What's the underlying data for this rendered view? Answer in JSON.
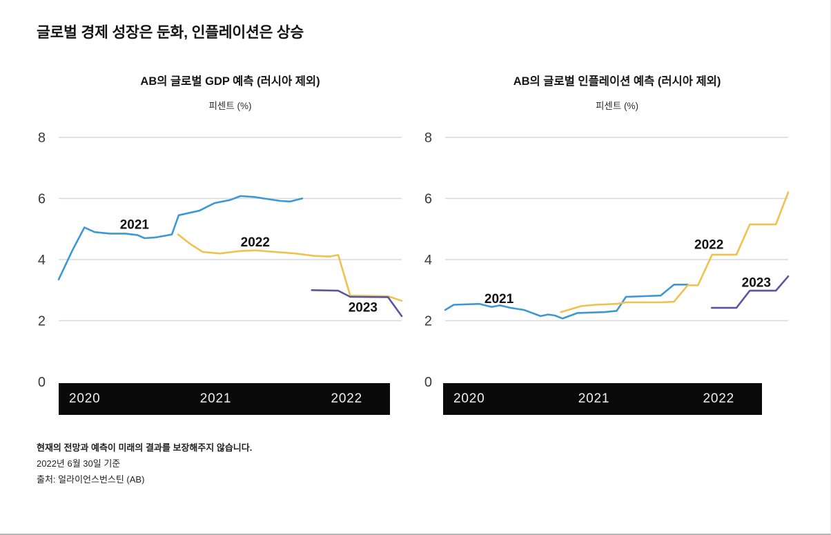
{
  "page_title": "글로벌 경제 성장은 둔화, 인플레이션은 상승",
  "colors": {
    "grid": "#d9d9d9",
    "tick_text": "#3a3a3a",
    "axis_bar_bg": "#0a0a0a",
    "axis_bar_text": "#efefef",
    "series_label_text": "#111111",
    "line_2021": "#3b98d5",
    "line_2022": "#efc24d",
    "line_2023": "#5b53a4"
  },
  "chart_data": [
    {
      "type": "line",
      "title": "AB의 글로벌 GDP 예측 (러시아 제외)",
      "unit_label": "피센트 (%)",
      "ylim": [
        0,
        8
      ],
      "yticks": [
        8,
        6,
        4,
        2,
        0
      ],
      "grid": "horizontal gridlines at 2,4,6,8; baseline is solid black bar",
      "legend": "inline bold year labels next to lines",
      "x_axis_years": [
        "2020",
        "2021",
        "2022"
      ],
      "series": [
        {
          "name": "2021",
          "color": "#3b98d5",
          "label": {
            "x": 0.221,
            "v": 5.15
          },
          "points": [
            [
              0.0,
              3.35
            ],
            [
              0.04,
              4.3
            ],
            [
              0.075,
              5.05
            ],
            [
              0.105,
              4.9
            ],
            [
              0.15,
              4.85
            ],
            [
              0.195,
              4.85
            ],
            [
              0.23,
              4.8
            ],
            [
              0.25,
              4.7
            ],
            [
              0.28,
              4.72
            ],
            [
              0.31,
              4.78
            ],
            [
              0.33,
              4.82
            ],
            [
              0.35,
              5.45
            ],
            [
              0.41,
              5.6
            ],
            [
              0.455,
              5.85
            ],
            [
              0.5,
              5.95
            ],
            [
              0.53,
              6.08
            ],
            [
              0.57,
              6.05
            ],
            [
              0.61,
              5.98
            ],
            [
              0.645,
              5.92
            ],
            [
              0.675,
              5.9
            ],
            [
              0.71,
              6.0
            ]
          ]
        },
        {
          "name": "2022",
          "color": "#efc24d",
          "label": {
            "x": 0.573,
            "v": 4.58
          },
          "points": [
            [
              0.348,
              4.82
            ],
            [
              0.385,
              4.5
            ],
            [
              0.42,
              4.25
            ],
            [
              0.47,
              4.2
            ],
            [
              0.53,
              4.28
            ],
            [
              0.575,
              4.3
            ],
            [
              0.63,
              4.25
            ],
            [
              0.69,
              4.2
            ],
            [
              0.745,
              4.12
            ],
            [
              0.79,
              4.1
            ],
            [
              0.815,
              4.15
            ],
            [
              0.85,
              2.82
            ],
            [
              0.96,
              2.8
            ],
            [
              1.0,
              2.65
            ]
          ]
        },
        {
          "name": "2023",
          "color": "#5b53a4",
          "label": {
            "x": 0.887,
            "v": 2.44
          },
          "points": [
            [
              0.738,
              3.0
            ],
            [
              0.815,
              2.98
            ],
            [
              0.85,
              2.78
            ],
            [
              0.96,
              2.77
            ],
            [
              1.0,
              2.15
            ]
          ]
        }
      ]
    },
    {
      "type": "line",
      "title": "AB의 글로벌 인플레이션 예측 (러시아 제외)",
      "unit_label": "피센트 (%)",
      "ylim": [
        0,
        8
      ],
      "yticks": [
        8,
        6,
        4,
        2,
        0
      ],
      "grid": "horizontal gridlines at 2,4,6,8; baseline is solid black bar",
      "legend": "inline bold year labels next to lines",
      "x_axis_years": [
        "2020",
        "2021",
        "2022"
      ],
      "series": [
        {
          "name": "2021",
          "color": "#3b98d5",
          "label": {
            "x": 0.157,
            "v": 2.72
          },
          "points": [
            [
              0.0,
              2.35
            ],
            [
              0.025,
              2.52
            ],
            [
              0.1,
              2.55
            ],
            [
              0.135,
              2.45
            ],
            [
              0.16,
              2.5
            ],
            [
              0.19,
              2.42
            ],
            [
              0.23,
              2.35
            ],
            [
              0.278,
              2.15
            ],
            [
              0.3,
              2.2
            ],
            [
              0.32,
              2.17
            ],
            [
              0.342,
              2.07
            ],
            [
              0.386,
              2.25
            ],
            [
              0.465,
              2.28
            ],
            [
              0.5,
              2.32
            ],
            [
              0.527,
              2.78
            ],
            [
              0.628,
              2.82
            ],
            [
              0.667,
              3.18
            ],
            [
              0.707,
              3.18
            ]
          ]
        },
        {
          "name": "2022",
          "color": "#efc24d",
          "label": {
            "x": 0.769,
            "v": 4.5
          },
          "points": [
            [
              0.337,
              2.28
            ],
            [
              0.398,
              2.48
            ],
            [
              0.438,
              2.52
            ],
            [
              0.5,
              2.55
            ],
            [
              0.527,
              2.6
            ],
            [
              0.628,
              2.6
            ],
            [
              0.667,
              2.62
            ],
            [
              0.707,
              3.16
            ],
            [
              0.737,
              3.16
            ],
            [
              0.778,
              4.16
            ],
            [
              0.849,
              4.16
            ],
            [
              0.888,
              5.15
            ],
            [
              0.964,
              5.15
            ],
            [
              1.0,
              6.2
            ]
          ]
        },
        {
          "name": "2023",
          "color": "#5b53a4",
          "label": {
            "x": 0.907,
            "v": 3.25
          },
          "points": [
            [
              0.777,
              2.42
            ],
            [
              0.849,
              2.42
            ],
            [
              0.888,
              2.98
            ],
            [
              0.964,
              2.98
            ],
            [
              1.0,
              3.45
            ]
          ]
        }
      ]
    }
  ],
  "footer": {
    "disclaimer": "현재의 전망과 예측이 미래의 결과를 보장해주지 않습니다.",
    "as_of": "2022년 6월 30일 기준",
    "source": "출처: 얼라이언스번스틴 (AB)"
  }
}
